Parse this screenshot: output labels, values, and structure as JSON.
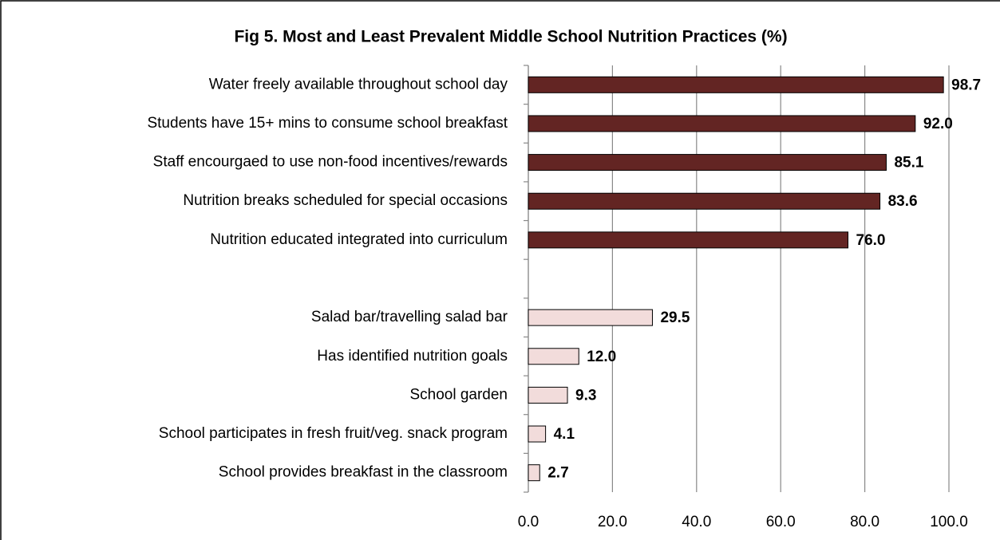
{
  "chart_data": {
    "type": "hbar",
    "title": "Fig 5. Most and Least Prevalent Middle School Nutrition Practices (%)",
    "categories": [
      "Water freely available throughout school day",
      "Students have 15+ mins to consume school breakfast",
      "Staff encourgaed to use non-food incentives/rewards",
      "Nutrition breaks scheduled for special occasions",
      "Nutrition educated integrated into curriculum",
      null,
      "Salad bar/travelling salad bar",
      "Has identified nutrition goals",
      "School garden",
      "School participates in fresh fruit/veg. snack program",
      "School provides breakfast in the classroom"
    ],
    "values": [
      98.7,
      92.0,
      85.1,
      83.6,
      76.0,
      null,
      29.5,
      12.0,
      9.3,
      4.1,
      2.7
    ],
    "value_labels": [
      "98.7",
      "92.0",
      "85.1",
      "83.6",
      "76.0",
      null,
      "29.5",
      "12.0",
      "9.3",
      "4.1",
      "2.7"
    ],
    "colors": [
      "#632523",
      "#632523",
      "#632523",
      "#632523",
      "#632523",
      null,
      "#f2dcdb",
      "#f2dcdb",
      "#f2dcdb",
      "#f2dcdb",
      "#f2dcdb"
    ],
    "xlim": [
      0,
      100
    ],
    "xticks": [
      {
        "value": 0,
        "label": "0.0"
      },
      {
        "value": 20,
        "label": "20.0"
      },
      {
        "value": 40,
        "label": "40.0"
      },
      {
        "value": 60,
        "label": "60.0"
      },
      {
        "value": 80,
        "label": "80.0"
      },
      {
        "value": 100,
        "label": "100.0"
      }
    ],
    "grid": true
  }
}
